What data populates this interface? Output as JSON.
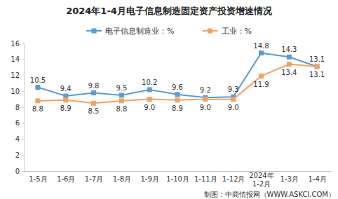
{
  "chart_data": {
    "type": "line",
    "title": "2024年1-4月电子信息制造固定资产投资增速情况",
    "categories": [
      "1-5月",
      "1-6月",
      "1-7月",
      "1-8月",
      "1-9月",
      "1-10月",
      "1-11月",
      "1-12月",
      "2024年\n1-2月",
      "1-3月",
      "1-4月"
    ],
    "series": [
      {
        "name": "电子信息制造业：%",
        "color": "#5b9bd5",
        "marker": "square",
        "values": [
          10.5,
          9.4,
          9.8,
          9.5,
          10.2,
          9.6,
          9.2,
          9.3,
          14.8,
          14.3,
          13.1
        ]
      },
      {
        "name": "工业：%",
        "color": "#f4a261",
        "marker": "square",
        "values": [
          8.8,
          8.9,
          8.5,
          8.8,
          9.0,
          8.9,
          9.0,
          9.0,
          11.9,
          13.4,
          13.1
        ],
        "value_labels": [
          "8.8",
          "8.9",
          "8.5",
          "8.8",
          "9.0",
          "8.9",
          "9.0",
          "9.0",
          "11.9",
          "13.4",
          "13.1"
        ]
      }
    ],
    "ylim": [
      0,
      16
    ],
    "yticks": [
      0,
      2,
      4,
      6,
      8,
      10,
      12,
      14,
      16
    ],
    "grid": false,
    "legend": "top",
    "data_labels": true,
    "annotations": [
      "制图：中商情报网（WWW.ASKCI.COM）"
    ]
  }
}
